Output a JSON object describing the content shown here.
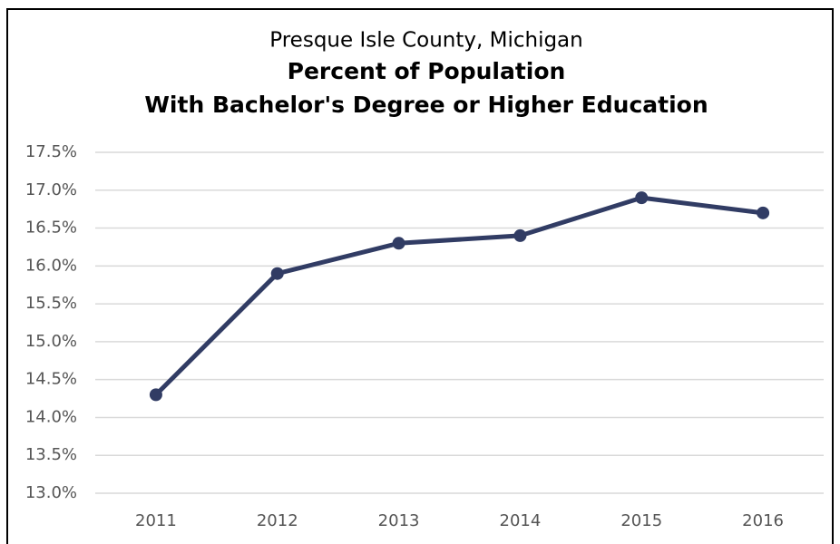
{
  "chart_data": {
    "type": "line",
    "title": [
      "Presque Isle County, Michigan",
      "Percent of Population",
      "With Bachelor's Degree or Higher Education"
    ],
    "categories": [
      "2011",
      "2012",
      "2013",
      "2014",
      "2015",
      "2016"
    ],
    "values": [
      14.3,
      15.9,
      16.3,
      16.4,
      16.9,
      16.7
    ],
    "color": "#313c64",
    "ylim": [
      13.0,
      17.5
    ],
    "yticks": [
      {
        "value": 13.0,
        "label": "13.0%"
      },
      {
        "value": 13.5,
        "label": "13.5%"
      },
      {
        "value": 14.0,
        "label": "14.0%"
      },
      {
        "value": 14.5,
        "label": "14.5%"
      },
      {
        "value": 15.0,
        "label": "15.0%"
      },
      {
        "value": 15.5,
        "label": "15.5%"
      },
      {
        "value": 16.0,
        "label": "16.0%"
      },
      {
        "value": 16.5,
        "label": "16.5%"
      },
      {
        "value": 17.0,
        "label": "17.0%"
      },
      {
        "value": 17.5,
        "label": "17.5%"
      }
    ],
    "grid": true
  }
}
